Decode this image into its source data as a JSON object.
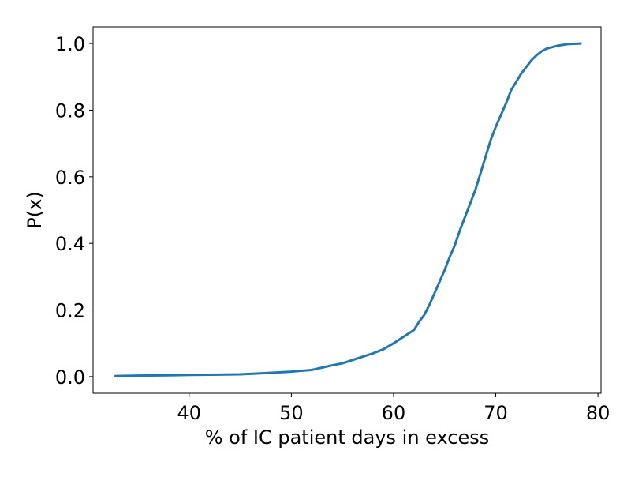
{
  "chart_data": {
    "type": "line",
    "title": "",
    "xlabel": "% of IC patient days in excess",
    "ylabel": "P(x)",
    "xlim": [
      30.6,
      80.3
    ],
    "ylim": [
      -0.05,
      1.05
    ],
    "x_ticks": [
      40,
      50,
      60,
      70,
      80
    ],
    "y_ticks": [
      0.0,
      0.2,
      0.4,
      0.6,
      0.8,
      1.0
    ],
    "x_tick_labels": [
      "40",
      "50",
      "60",
      "70",
      "80"
    ],
    "y_tick_labels": [
      "0.0",
      "0.2",
      "0.4",
      "0.6",
      "0.8",
      "1.0"
    ],
    "grid": false,
    "line_color": "#1f77b4",
    "series": [
      {
        "x": [
          32.8,
          35,
          38,
          40,
          43,
          45,
          47,
          50,
          52,
          53,
          54,
          55,
          56,
          57,
          58,
          59,
          60,
          61,
          62,
          62.5,
          63,
          63.5,
          64,
          64.5,
          65,
          65.5,
          66,
          66.5,
          67,
          67.5,
          68,
          68.5,
          69,
          69.5,
          70,
          70.5,
          71,
          71.5,
          72,
          72.5,
          73,
          73.5,
          74,
          74.5,
          75,
          76,
          77,
          78.3
        ],
        "y": [
          0.002,
          0.003,
          0.004,
          0.005,
          0.006,
          0.007,
          0.01,
          0.015,
          0.02,
          0.027,
          0.034,
          0.04,
          0.05,
          0.06,
          0.07,
          0.082,
          0.1,
          0.12,
          0.14,
          0.165,
          0.185,
          0.215,
          0.25,
          0.285,
          0.32,
          0.36,
          0.395,
          0.44,
          0.48,
          0.52,
          0.56,
          0.61,
          0.66,
          0.71,
          0.75,
          0.785,
          0.82,
          0.86,
          0.885,
          0.91,
          0.93,
          0.95,
          0.965,
          0.977,
          0.985,
          0.993,
          0.998,
          1.0
        ]
      }
    ]
  }
}
